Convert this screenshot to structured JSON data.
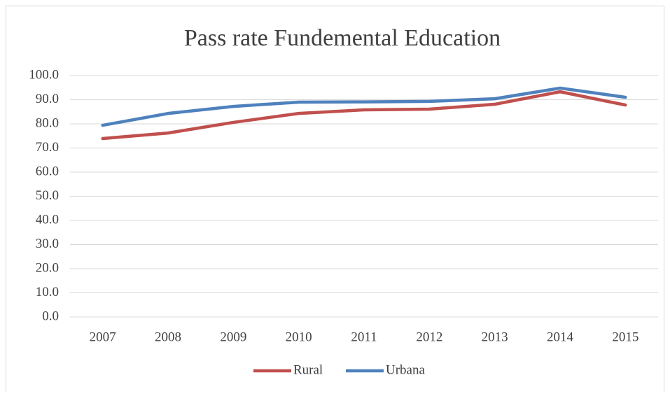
{
  "chart_data": {
    "type": "line",
    "title": "Pass rate Fundemental Education",
    "categories": [
      "2007",
      "2008",
      "2009",
      "2010",
      "2011",
      "2012",
      "2013",
      "2014",
      "2015"
    ],
    "series": [
      {
        "name": "Rural",
        "color": "#c0504d",
        "values": [
          73.9,
          76.2,
          80.6,
          84.3,
          85.8,
          86.1,
          88.1,
          93.3,
          87.8
        ]
      },
      {
        "name": "Urbana",
        "color": "#4f81bd",
        "values": [
          79.4,
          84.3,
          87.2,
          89.0,
          89.1,
          89.3,
          90.4,
          94.8,
          91.0
        ]
      }
    ],
    "ylim": [
      0,
      100
    ],
    "yticks": [
      {
        "value": 0,
        "label": "0.0"
      },
      {
        "value": 10,
        "label": "10.0"
      },
      {
        "value": 20,
        "label": "20.0"
      },
      {
        "value": 30,
        "label": "30.0"
      },
      {
        "value": 40,
        "label": "40.0"
      },
      {
        "value": 50,
        "label": "50.0"
      },
      {
        "value": 60,
        "label": "60.0"
      },
      {
        "value": 70,
        "label": "70.0"
      },
      {
        "value": 80,
        "label": "80.0"
      },
      {
        "value": 90,
        "label": "90.0"
      },
      {
        "value": 100,
        "label": "100.0"
      }
    ],
    "grid": true,
    "legend": "bottom"
  }
}
